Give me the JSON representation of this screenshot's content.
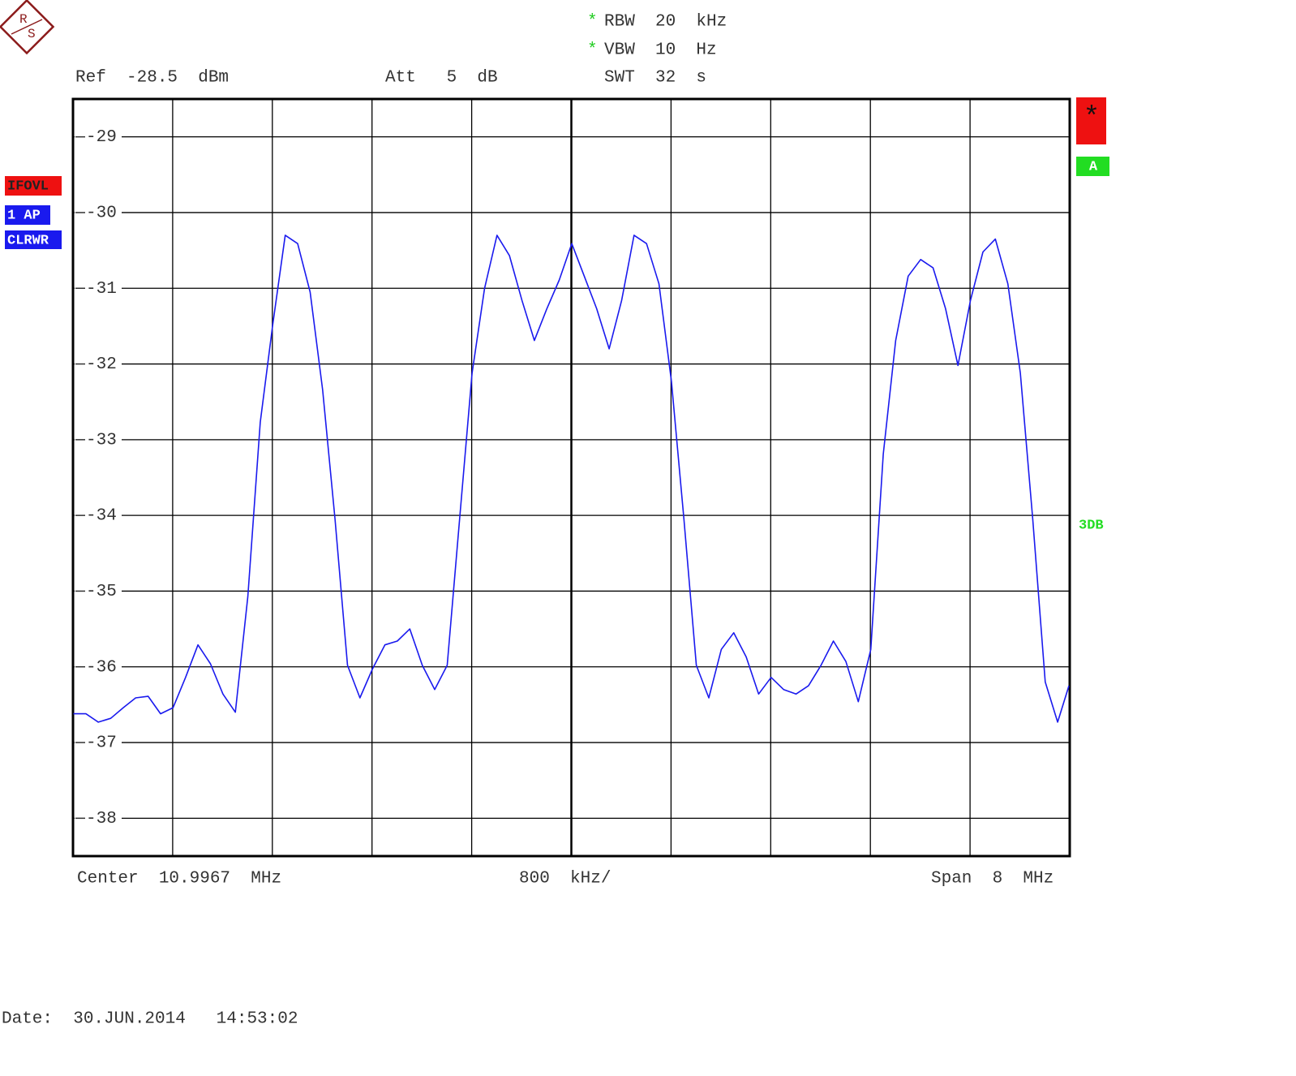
{
  "logo": {
    "top": "R",
    "bottom": "S"
  },
  "settings": {
    "rbw_marker": "*",
    "rbw": "RBW  20  kHz",
    "vbw_marker": "*",
    "vbw": "VBW  10  Hz",
    "ref": "Ref  -28.5  dBm",
    "att": "Att   5  dB",
    "swt": "SWT  32  s"
  },
  "side_left": {
    "overload": "IFOVL",
    "mode": "CLRWR"
  },
  "side_right": {
    "star": "*",
    "trace_mode": "A",
    "note": "3DB"
  },
  "footer": {
    "center": "Center  10.9967  MHz",
    "division": "800  kHz/",
    "span": "Span  8  MHz",
    "date": "Date:  30.JUN.2014   14:53:02"
  },
  "chart_data": {
    "type": "line",
    "ylim": [
      -38.5,
      -28.5
    ],
    "yticks": [
      -29,
      -30,
      -31,
      -32,
      -33,
      -34,
      -35,
      -36,
      -37,
      -38
    ],
    "xlim": [
      6.9967,
      14.9967
    ],
    "xticks": [
      6.9967,
      7.7967,
      8.5967,
      9.3967,
      10.1967,
      10.9967,
      11.7967,
      12.5967,
      13.3967,
      14.1967,
      14.9967
    ],
    "grid": true,
    "x": [
      7.0,
      7.1,
      7.2,
      7.3,
      7.4,
      7.5,
      7.6,
      7.7,
      7.8,
      7.9,
      8.0,
      8.1,
      8.2,
      8.3,
      8.4,
      8.5,
      8.6,
      8.7,
      8.8,
      8.9,
      9.0,
      9.1,
      9.2,
      9.3,
      9.4,
      9.5,
      9.6,
      9.7,
      9.8,
      9.9,
      10.0,
      10.1,
      10.2,
      10.3,
      10.4,
      10.5,
      10.6,
      10.7,
      10.8,
      10.9,
      11.0,
      11.1,
      11.2,
      11.3,
      11.4,
      11.5,
      11.6,
      11.7,
      11.8,
      11.9,
      12.0,
      12.1,
      12.2,
      12.3,
      12.4,
      12.5,
      12.6,
      12.7,
      12.8,
      12.9,
      13.0,
      13.1,
      13.2,
      13.3,
      13.4,
      13.5,
      13.6,
      13.7,
      13.8,
      13.9,
      14.0,
      14.1,
      14.2,
      14.3,
      14.4,
      14.5,
      14.6,
      14.7,
      14.8,
      14.9,
      14.99
    ],
    "series": [
      {
        "name": "1 AP",
        "color": "#1a1aee",
        "values": [
          -36.62,
          -36.62,
          -36.73,
          -36.68,
          -36.54,
          -36.41,
          -36.39,
          -36.62,
          -36.54,
          -36.14,
          -35.71,
          -35.96,
          -36.36,
          -36.6,
          -35.07,
          -32.77,
          -31.48,
          -30.3,
          -30.41,
          -31.05,
          -32.34,
          -34.05,
          -35.98,
          -36.41,
          -36.03,
          -35.71,
          -35.66,
          -35.5,
          -35.98,
          -36.3,
          -35.98,
          -34.05,
          -32.12,
          -31.0,
          -30.3,
          -30.57,
          -31.16,
          -31.69,
          -31.27,
          -30.89,
          -30.41,
          -30.84,
          -31.27,
          -31.8,
          -31.16,
          -30.3,
          -30.41,
          -30.94,
          -32.23,
          -34.05,
          -35.98,
          -36.41,
          -35.77,
          -35.55,
          -35.87,
          -36.36,
          -36.14,
          -36.3,
          -36.36,
          -36.25,
          -35.98,
          -35.66,
          -35.93,
          -36.46,
          -35.77,
          -33.19,
          -31.69,
          -30.84,
          -30.62,
          -30.73,
          -31.27,
          -32.02,
          -31.16,
          -30.52,
          -30.35,
          -30.94,
          -32.12,
          -34.05,
          -36.2,
          -36.73,
          -36.25
        ]
      }
    ]
  }
}
